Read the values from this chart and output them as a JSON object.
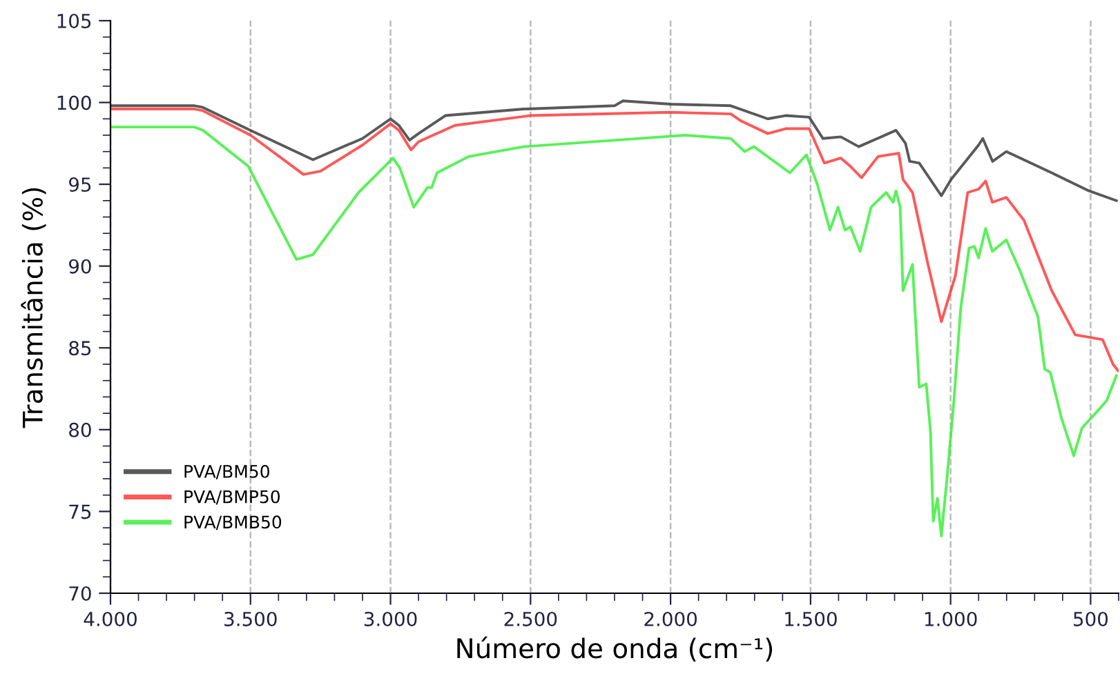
{
  "chart_data": {
    "type": "line",
    "xlabel": "Número de onda (cm⁻¹)",
    "ylabel": "Transmitância (%)",
    "xlim": [
      4000,
      400
    ],
    "ylim": [
      70,
      105
    ],
    "xticks": [
      {
        "value": 4000,
        "label": "4.000"
      },
      {
        "value": 3500,
        "label": "3.500"
      },
      {
        "value": 3000,
        "label": "3.000"
      },
      {
        "value": 2500,
        "label": "2.500"
      },
      {
        "value": 2000,
        "label": "2.000"
      },
      {
        "value": 1500,
        "label": "1.500"
      },
      {
        "value": 1000,
        "label": "1.000"
      },
      500
    ],
    "yticks": [
      70,
      75,
      80,
      85,
      90,
      95,
      100,
      105
    ],
    "grid": "x",
    "legend": "bottom left",
    "marker": "none",
    "line_style": "solid",
    "series": [
      {
        "name": "PVA/BM50",
        "color": "#3c3c3c",
        "x": [
          4000,
          3700,
          3670,
          3500,
          3277,
          3100,
          3000,
          2970,
          2932,
          2900,
          2804,
          2524,
          2200,
          2170,
          2000,
          1785,
          1653,
          1589,
          1505,
          1456,
          1392,
          1328,
          1195,
          1161,
          1146,
          1112,
          1033,
          998,
          900,
          885,
          850,
          801,
          639,
          506,
          408
        ],
        "values": [
          99.8,
          99.8,
          99.7,
          98.3,
          96.5,
          97.8,
          99.0,
          98.6,
          97.7,
          98.1,
          99.2,
          99.6,
          99.8,
          100.1,
          99.9,
          99.8,
          99.0,
          99.2,
          99.1,
          97.8,
          97.9,
          97.3,
          98.3,
          97.5,
          96.4,
          96.3,
          94.3,
          95.3,
          97.4,
          97.8,
          96.4,
          97.0,
          95.7,
          94.6,
          94.0
        ]
      },
      {
        "name": "PVA/BMP50",
        "color": "#ff3b3b",
        "x": [
          4000,
          3700,
          3670,
          3500,
          3311,
          3250,
          3100,
          3000,
          2970,
          2927,
          2900,
          2770,
          2500,
          2000,
          1785,
          1751,
          1653,
          1589,
          1505,
          1451,
          1392,
          1358,
          1318,
          1259,
          1185,
          1170,
          1136,
          1082,
          1033,
          983,
          939,
          900,
          875,
          851,
          801,
          738,
          639,
          555,
          457,
          420,
          402
        ],
        "values": [
          99.6,
          99.6,
          99.5,
          98.0,
          95.6,
          95.8,
          97.4,
          98.7,
          98.3,
          97.1,
          97.6,
          98.6,
          99.2,
          99.4,
          99.3,
          98.9,
          98.1,
          98.4,
          98.4,
          96.3,
          96.6,
          96.1,
          95.4,
          96.7,
          96.9,
          95.3,
          94.5,
          90.2,
          86.6,
          89.4,
          94.5,
          94.7,
          95.2,
          93.9,
          94.2,
          92.8,
          88.5,
          85.8,
          85.5,
          84.0,
          83.6
        ]
      },
      {
        "name": "PVA/BMB50",
        "color": "#3cee3c",
        "x": [
          4000,
          3700,
          3670,
          3508,
          3336,
          3277,
          3114,
          2991,
          2967,
          2917,
          2868,
          2853,
          2834,
          2720,
          2524,
          2194,
          1948,
          1785,
          1736,
          1702,
          1574,
          1515,
          1476,
          1431,
          1402,
          1377,
          1358,
          1323,
          1284,
          1230,
          1205,
          1195,
          1180,
          1170,
          1136,
          1112,
          1087,
          1072,
          1062,
          1047,
          1033,
          1013,
          988,
          964,
          934,
          915,
          900,
          875,
          851,
          801,
          752,
          688,
          664,
          644,
          604,
          560,
          531,
          472,
          442,
          408
        ],
        "values": [
          98.5,
          98.5,
          98.3,
          96.1,
          90.4,
          90.7,
          94.5,
          96.6,
          96.0,
          93.6,
          94.8,
          94.8,
          95.7,
          96.7,
          97.3,
          97.7,
          98.0,
          97.8,
          97.0,
          97.3,
          95.7,
          96.8,
          95.0,
          92.2,
          93.6,
          92.2,
          92.4,
          90.9,
          93.6,
          94.5,
          93.9,
          94.6,
          93.6,
          88.5,
          90.1,
          82.6,
          82.8,
          79.9,
          74.4,
          75.8,
          73.5,
          77.0,
          81.8,
          87.4,
          91.1,
          91.2,
          90.5,
          92.3,
          90.9,
          91.6,
          89.7,
          86.9,
          83.7,
          83.5,
          80.7,
          78.4,
          80.1,
          81.2,
          81.8,
          83.3
        ]
      }
    ]
  }
}
